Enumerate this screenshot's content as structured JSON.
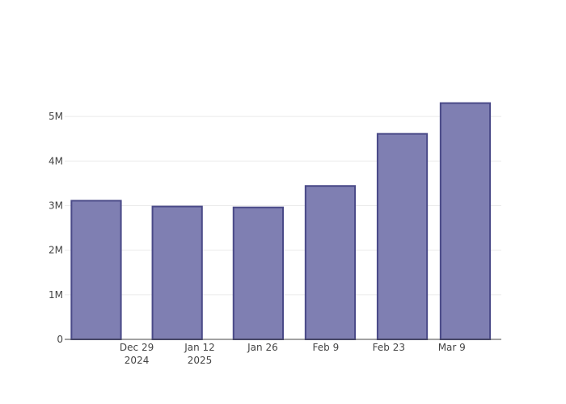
{
  "chart_data": {
    "type": "bar",
    "categories": [
      "2024-12-22",
      "2025-01-05",
      "2025-01-19",
      "2025-02-02",
      "2025-02-16",
      "2025-03-02"
    ],
    "values": [
      3110000,
      2980000,
      2960000,
      3440000,
      4610000,
      5300000
    ],
    "bar_widths_days": [
      11,
      11,
      11,
      11,
      11,
      11
    ],
    "bar_centers": [
      "2024-12-20",
      "2025-01-07",
      "2025-01-25",
      "2025-02-10",
      "2025-02-26",
      "2025-03-12"
    ],
    "xlabel": "",
    "ylabel": "",
    "ylim": [
      0,
      5800000
    ],
    "y_ticks": [
      {
        "value": 0,
        "label": "0"
      },
      {
        "value": 1000000,
        "label": "1M"
      },
      {
        "value": 2000000,
        "label": "2M"
      },
      {
        "value": 3000000,
        "label": "3M"
      },
      {
        "value": 4000000,
        "label": "4M"
      },
      {
        "value": 5000000,
        "label": "5M"
      }
    ],
    "x_ticks": [
      {
        "date": "2024-12-29",
        "label": "Dec 29",
        "sublabel": "2024"
      },
      {
        "date": "2025-01-12",
        "label": "Jan 12",
        "sublabel": "2025"
      },
      {
        "date": "2025-01-26",
        "label": "Jan 26",
        "sublabel": ""
      },
      {
        "date": "2025-02-09",
        "label": "Feb 9",
        "sublabel": ""
      },
      {
        "date": "2025-02-23",
        "label": "Feb 23",
        "sublabel": ""
      },
      {
        "date": "2025-03-09",
        "label": "Mar 9",
        "sublabel": ""
      }
    ],
    "x_range": [
      "2024-12-13",
      "2025-03-20"
    ],
    "grid": true,
    "colors": {
      "bar_fill": "#7f7fb2",
      "bar_stroke": "#4a4a88",
      "grid": "#ebebeb",
      "axis": "#444444"
    }
  }
}
